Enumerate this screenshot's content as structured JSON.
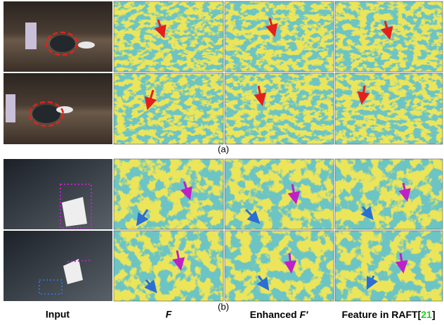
{
  "panels": [
    {
      "label": "(a)"
    },
    {
      "label": "(b)"
    }
  ],
  "column_labels": [
    "Input",
    "F",
    "Enhanced ",
    "F′",
    "Feature in RAFT"
  ],
  "citation": {
    "open": "[",
    "number": "21",
    "close": "]"
  }
}
